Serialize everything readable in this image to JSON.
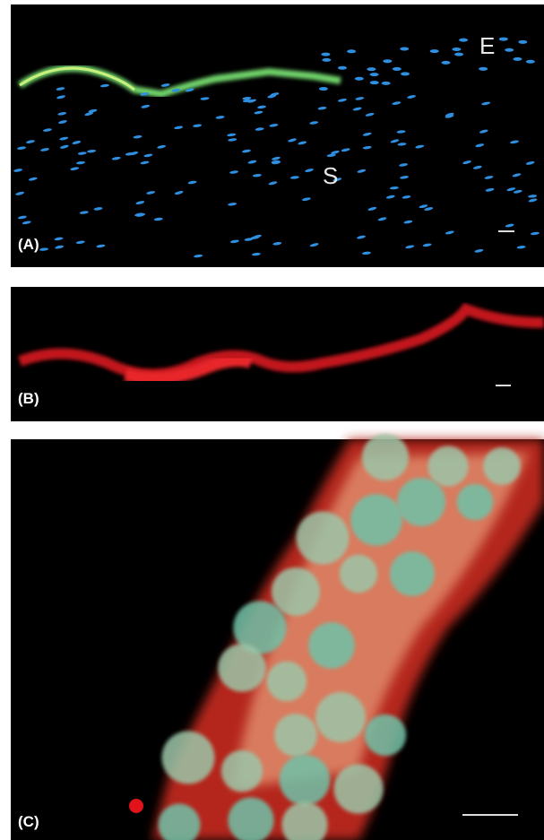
{
  "panels": [
    {
      "label": "(A)",
      "annotations": [
        "E",
        "S"
      ]
    },
    {
      "label": "(B)"
    },
    {
      "label": "(C)"
    }
  ]
}
